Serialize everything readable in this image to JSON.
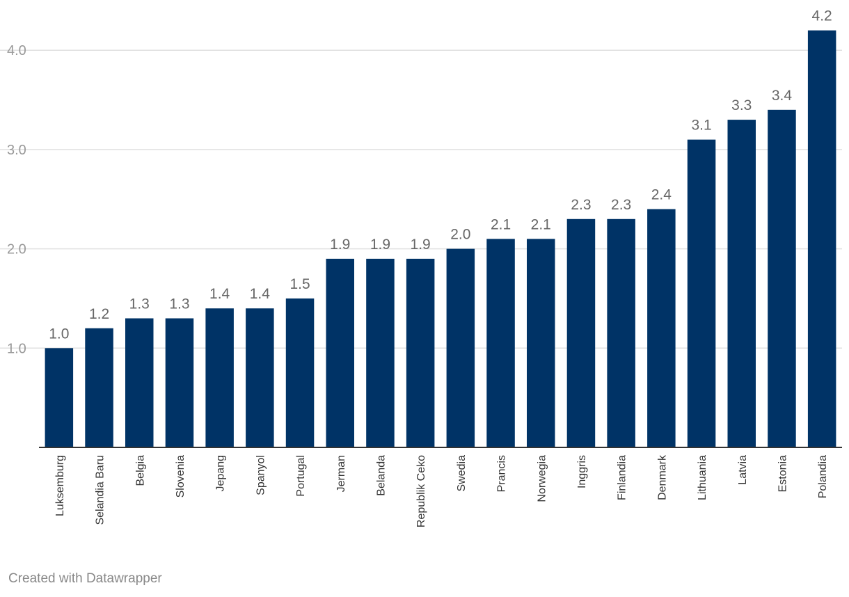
{
  "chart_data": {
    "type": "bar",
    "categories": [
      "Luksemburg",
      "Selandia Baru",
      "Belgia",
      "Slovenia",
      "Jepang",
      "Spanyol",
      "Portugal",
      "Jerman",
      "Belanda",
      "Republik Ceko",
      "Swedia",
      "Prancis",
      "Norwegia",
      "Inggris",
      "Finlandia",
      "Denmark",
      "Lithuania",
      "Latvia",
      "Estonia",
      "Polandia"
    ],
    "values": [
      1.0,
      1.2,
      1.3,
      1.3,
      1.4,
      1.4,
      1.5,
      1.9,
      1.9,
      1.9,
      2.0,
      2.1,
      2.1,
      2.3,
      2.3,
      2.4,
      3.1,
      3.3,
      3.4,
      4.2
    ],
    "value_labels": [
      "1.0",
      "1.2",
      "1.3",
      "1.3",
      "1.4",
      "1.4",
      "1.5",
      "1.9",
      "1.9",
      "1.9",
      "2.0",
      "2.1",
      "2.1",
      "2.3",
      "2.3",
      "2.4",
      "3.1",
      "3.3",
      "3.4",
      "4.2"
    ],
    "yticks": [
      1.0,
      2.0,
      3.0,
      4.0
    ],
    "ytick_labels": [
      "1.0",
      "2.0",
      "3.0",
      "4.0"
    ],
    "ylim": [
      0,
      4.4
    ],
    "grid": true,
    "bar_color": "#003366",
    "title": "",
    "xlabel": "",
    "ylabel": ""
  },
  "footer": {
    "credit": "Created with Datawrapper"
  }
}
